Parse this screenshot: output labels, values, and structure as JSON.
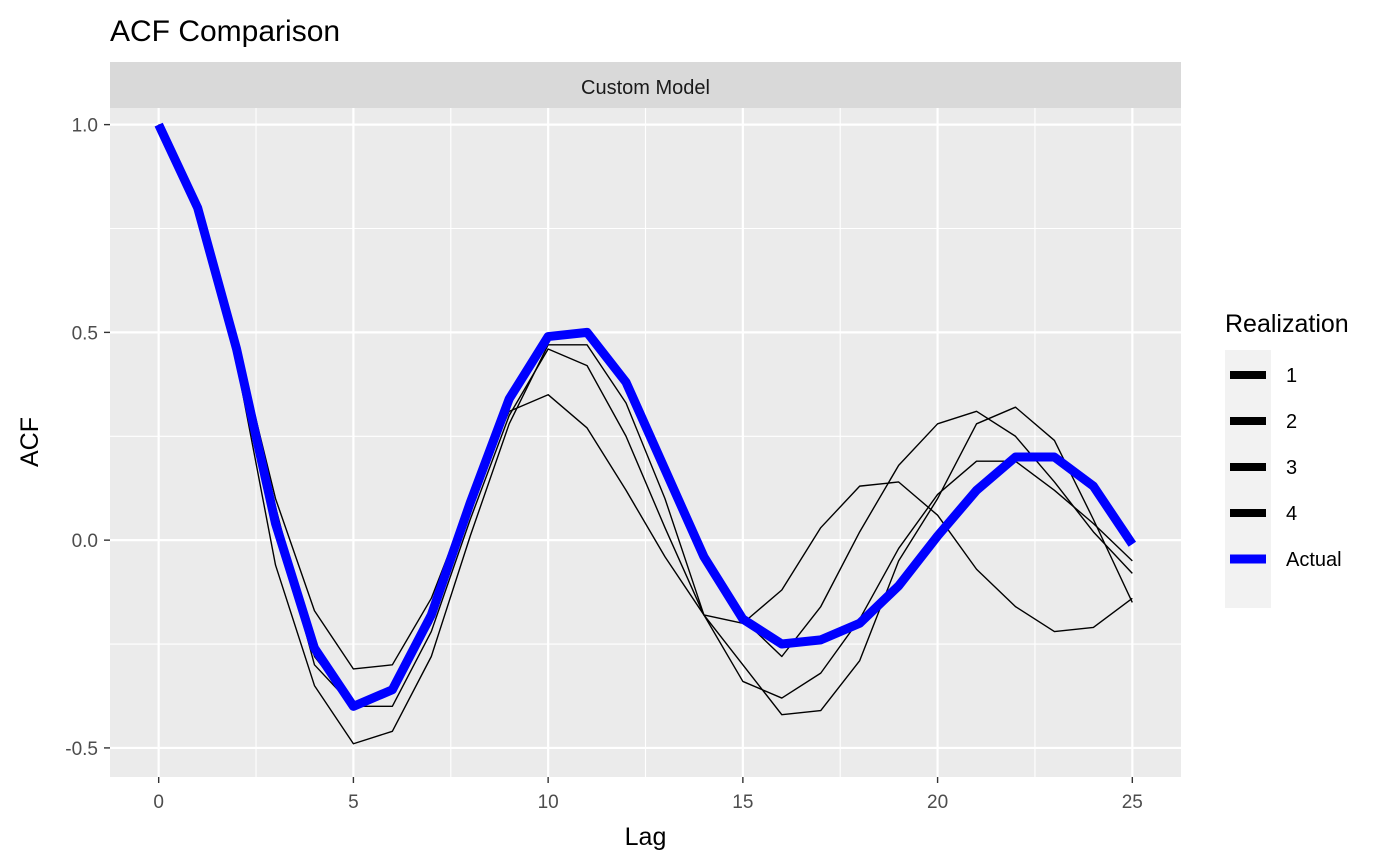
{
  "chart_data": {
    "type": "line",
    "title": "ACF Comparison",
    "facet_label": "Custom Model",
    "xlabel": "Lag",
    "ylabel": "ACF",
    "xlim": [
      -1.25,
      26.25
    ],
    "ylim": [
      -0.57,
      1.04
    ],
    "x_ticks": [
      0,
      5,
      10,
      15,
      20,
      25
    ],
    "x_tick_labels": [
      "0",
      "5",
      "10",
      "15",
      "20",
      "25"
    ],
    "y_ticks": [
      -0.5,
      0.0,
      0.5,
      1.0
    ],
    "y_tick_labels": [
      "-0.5",
      "0.0",
      "0.5",
      "1.0"
    ],
    "grid": true,
    "legend": {
      "title": "Realization",
      "position": "right"
    },
    "x": [
      0,
      1,
      2,
      3,
      4,
      5,
      6,
      7,
      8,
      9,
      10,
      11,
      12,
      13,
      14,
      15,
      16,
      17,
      18,
      19,
      20,
      21,
      22,
      23,
      24,
      25
    ],
    "series": [
      {
        "name": "1",
        "color": "#000000",
        "values": [
          1.0,
          0.8,
          0.45,
          0.05,
          -0.3,
          -0.4,
          -0.36,
          -0.2,
          0.08,
          0.33,
          0.49,
          0.5,
          0.37,
          0.17,
          -0.04,
          -0.19,
          -0.28,
          -0.16,
          0.02,
          0.18,
          0.28,
          0.31,
          0.25,
          0.14,
          0.02,
          -0.08
        ]
      },
      {
        "name": "2",
        "color": "#000000",
        "values": [
          1.0,
          0.81,
          0.48,
          0.1,
          -0.17,
          -0.31,
          -0.3,
          -0.14,
          0.1,
          0.31,
          0.35,
          0.27,
          0.12,
          -0.04,
          -0.18,
          -0.2,
          -0.12,
          0.03,
          0.13,
          0.14,
          0.06,
          -0.07,
          -0.16,
          -0.22,
          -0.21,
          -0.14
        ]
      },
      {
        "name": "3",
        "color": "#000000",
        "values": [
          1.0,
          0.82,
          0.49,
          0.08,
          -0.28,
          -0.4,
          -0.4,
          -0.22,
          0.05,
          0.3,
          0.46,
          0.42,
          0.25,
          0.03,
          -0.18,
          -0.34,
          -0.38,
          -0.32,
          -0.19,
          -0.02,
          0.11,
          0.19,
          0.19,
          0.12,
          0.04,
          -0.05
        ]
      },
      {
        "name": "4",
        "color": "#000000",
        "values": [
          1.0,
          0.79,
          0.43,
          -0.06,
          -0.35,
          -0.49,
          -0.46,
          -0.28,
          0.01,
          0.28,
          0.47,
          0.47,
          0.33,
          0.1,
          -0.18,
          -0.3,
          -0.42,
          -0.41,
          -0.29,
          -0.05,
          0.1,
          0.28,
          0.32,
          0.24,
          0.05,
          -0.15
        ]
      },
      {
        "name": "Actual",
        "color": "#0000ff",
        "values": [
          1.0,
          0.8,
          0.46,
          0.04,
          -0.26,
          -0.4,
          -0.36,
          -0.18,
          0.09,
          0.34,
          0.49,
          0.5,
          0.38,
          0.17,
          -0.04,
          -0.19,
          -0.25,
          -0.24,
          -0.2,
          -0.11,
          0.01,
          0.12,
          0.2,
          0.2,
          0.13,
          -0.01
        ]
      }
    ]
  }
}
